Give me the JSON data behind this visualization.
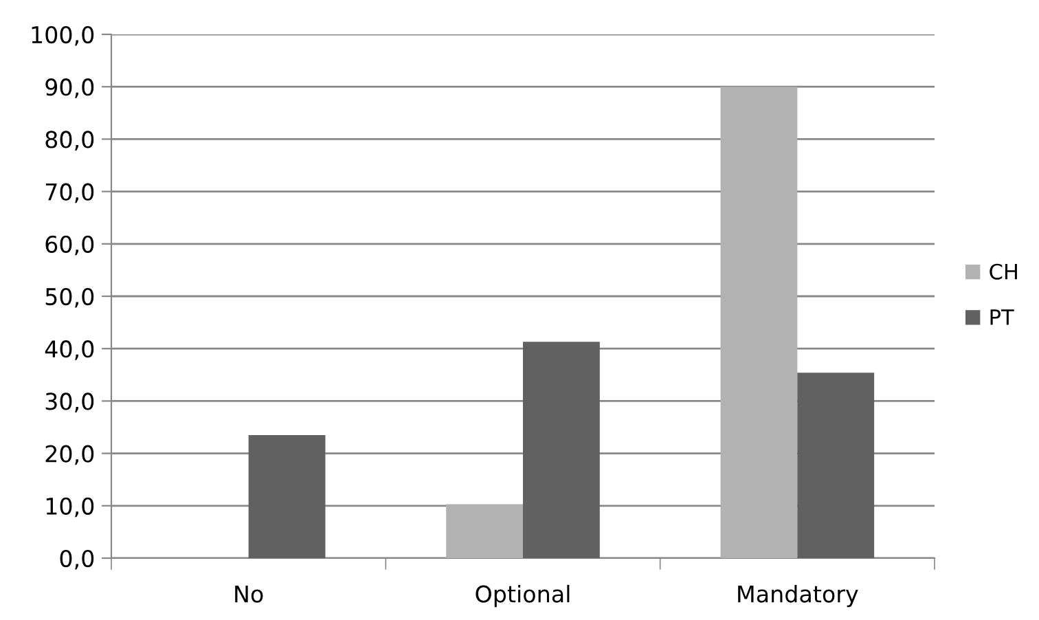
{
  "chart_data": {
    "type": "bar",
    "categories": [
      "No",
      "Optional",
      "Mandatory"
    ],
    "series": [
      {
        "name": "CH",
        "color": "#b2b2b2",
        "values": [
          0,
          10.3,
          90.0
        ]
      },
      {
        "name": "PT",
        "color": "#616161",
        "values": [
          23.5,
          41.3,
          35.4
        ]
      }
    ],
    "ylim": [
      0,
      100
    ],
    "yticks": [
      {
        "value": 0,
        "label": "0,0"
      },
      {
        "value": 10,
        "label": "10,0"
      },
      {
        "value": 20,
        "label": "20,0"
      },
      {
        "value": 30,
        "label": "30,0"
      },
      {
        "value": 40,
        "label": "40,0"
      },
      {
        "value": 50,
        "label": "50,0"
      },
      {
        "value": 60,
        "label": "60,0"
      },
      {
        "value": 70,
        "label": "70,0"
      },
      {
        "value": 80,
        "label": "80,0"
      },
      {
        "value": 90,
        "label": "90,0"
      },
      {
        "value": 100,
        "label": "100,0"
      }
    ],
    "grid": "y",
    "legend": "right"
  }
}
